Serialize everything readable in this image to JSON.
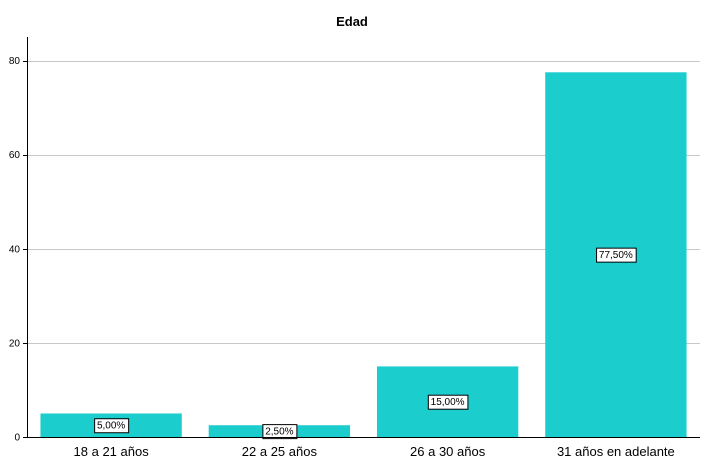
{
  "chart_data": {
    "type": "bar",
    "title": "Edad",
    "xlabel": "",
    "ylabel": "",
    "categories": [
      "18 a 21 años",
      "22 a 25 años",
      "26 a 30 años",
      "31 años en adelante"
    ],
    "values": [
      5.0,
      2.5,
      15.0,
      77.5
    ],
    "data_labels": [
      "5,00%",
      "2,50%",
      "15,00%",
      "77,50%"
    ],
    "ylim": [
      0,
      85
    ],
    "yticks": [
      0,
      20,
      40,
      60,
      80
    ],
    "grid": true,
    "bar_color": "#1ccdcd"
  }
}
